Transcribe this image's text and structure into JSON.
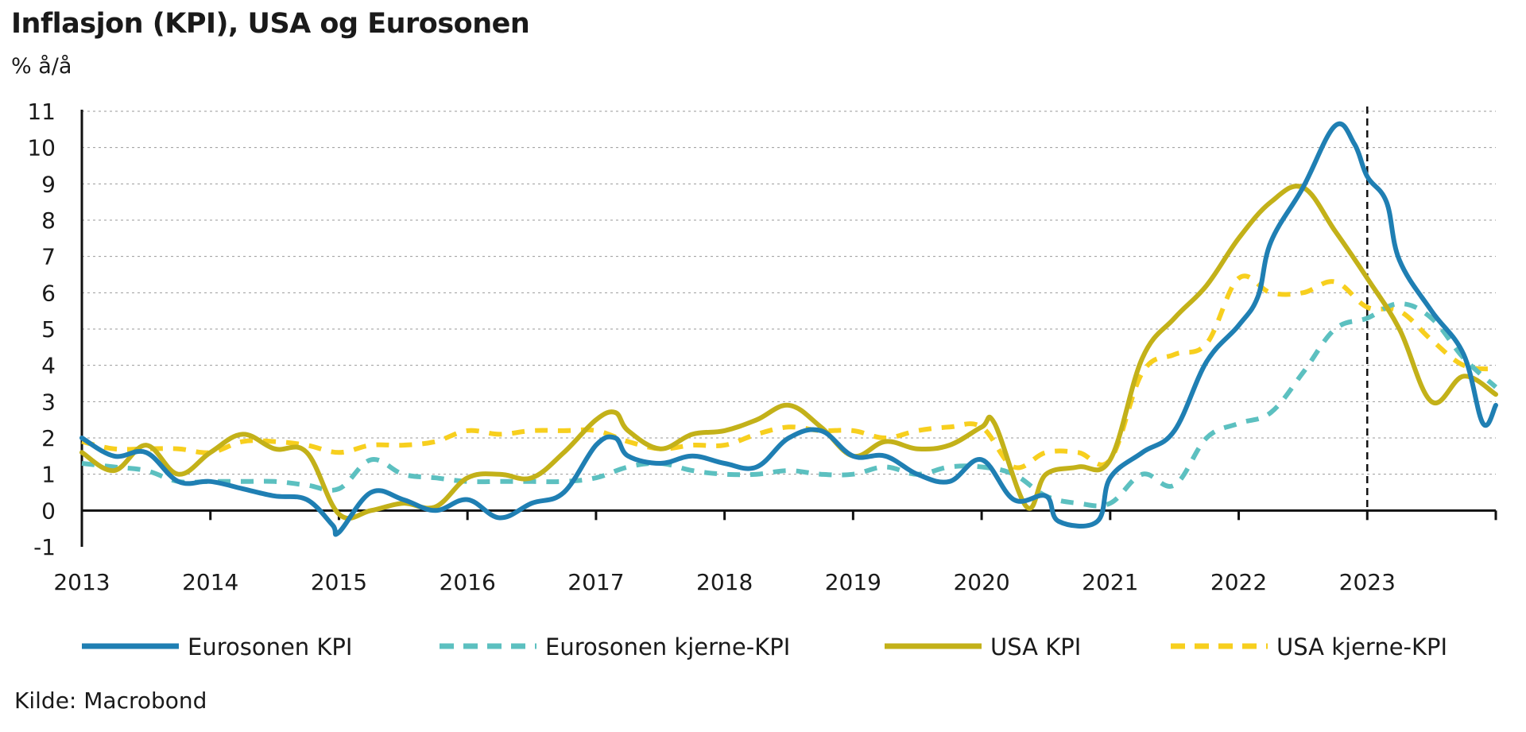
{
  "header": {
    "title": "Inflasjon (KPI), USA og Eurosonen",
    "unit": "% å/å"
  },
  "footer": {
    "source": "Kilde: Macrobond"
  },
  "chart_data": {
    "type": "line",
    "title": "Inflasjon (KPI), USA og Eurosonen",
    "ylabel": "% å/å",
    "xlabel": "",
    "ylim": [
      -1,
      11
    ],
    "yticks": [
      -1,
      0,
      1,
      2,
      3,
      4,
      5,
      6,
      7,
      8,
      9,
      10,
      11
    ],
    "xlim": [
      2013.0,
      2024.0
    ],
    "xticks": [
      "2013",
      "2014",
      "2015",
      "2016",
      "2017",
      "2018",
      "2019",
      "2020",
      "2021",
      "2022",
      "2023"
    ],
    "grid": "horizontal dashed",
    "legend_position": "bottom",
    "vertical_marker": {
      "x": 2023.0,
      "style": "dashed"
    },
    "series": [
      {
        "name": "Eurosonen KPI",
        "color": "#1f7fb3",
        "style": "solid",
        "x": [
          2013.0,
          2013.25,
          2013.5,
          2013.75,
          2014.0,
          2014.25,
          2014.5,
          2014.75,
          2014.95,
          2015.0,
          2015.25,
          2015.5,
          2015.75,
          2016.0,
          2016.25,
          2016.5,
          2016.75,
          2017.0,
          2017.15,
          2017.25,
          2017.5,
          2017.75,
          2018.0,
          2018.25,
          2018.5,
          2018.75,
          2019.0,
          2019.25,
          2019.5,
          2019.75,
          2020.0,
          2020.25,
          2020.5,
          2020.6,
          2020.9,
          2021.0,
          2021.25,
          2021.5,
          2021.75,
          2022.0,
          2022.15,
          2022.25,
          2022.5,
          2022.75,
          2022.9,
          2023.0,
          2023.15,
          2023.25,
          2023.5,
          2023.75,
          2023.9,
          2024.0
        ],
        "y": [
          2.0,
          1.5,
          1.6,
          0.8,
          0.8,
          0.6,
          0.4,
          0.3,
          -0.4,
          -0.6,
          0.5,
          0.3,
          0.0,
          0.3,
          -0.2,
          0.2,
          0.5,
          1.8,
          2.0,
          1.5,
          1.3,
          1.5,
          1.3,
          1.2,
          2.0,
          2.2,
          1.5,
          1.5,
          1.0,
          0.8,
          1.4,
          0.3,
          0.4,
          -0.3,
          -0.3,
          0.9,
          1.6,
          2.2,
          4.1,
          5.1,
          5.9,
          7.4,
          8.9,
          10.6,
          10.1,
          9.2,
          8.5,
          6.9,
          5.5,
          4.3,
          2.4,
          2.9
        ]
      },
      {
        "name": "Eurosonen kjerne-KPI",
        "color": "#5cc0c0",
        "style": "dashed",
        "x": [
          2013.0,
          2013.25,
          2013.5,
          2013.75,
          2014.0,
          2014.25,
          2014.5,
          2014.75,
          2015.0,
          2015.25,
          2015.5,
          2015.75,
          2016.0,
          2016.25,
          2016.5,
          2016.75,
          2017.0,
          2017.25,
          2017.5,
          2017.75,
          2018.0,
          2018.25,
          2018.5,
          2018.75,
          2019.0,
          2019.25,
          2019.5,
          2019.75,
          2020.0,
          2020.25,
          2020.5,
          2020.75,
          2021.0,
          2021.25,
          2021.5,
          2021.75,
          2022.0,
          2022.25,
          2022.5,
          2022.75,
          2023.0,
          2023.25,
          2023.5,
          2023.75,
          2024.0
        ],
        "y": [
          1.3,
          1.2,
          1.1,
          0.8,
          0.8,
          0.8,
          0.8,
          0.7,
          0.6,
          1.4,
          1.0,
          0.9,
          0.8,
          0.8,
          0.8,
          0.8,
          0.9,
          1.2,
          1.3,
          1.1,
          1.0,
          1.0,
          1.1,
          1.0,
          1.0,
          1.2,
          1.0,
          1.2,
          1.2,
          1.0,
          0.4,
          0.2,
          0.2,
          1.0,
          0.7,
          2.0,
          2.4,
          2.7,
          3.8,
          5.0,
          5.3,
          5.7,
          5.3,
          4.2,
          3.4
        ]
      },
      {
        "name": "USA KPI",
        "color": "#c3b119",
        "style": "solid",
        "x": [
          2013.0,
          2013.25,
          2013.5,
          2013.75,
          2014.0,
          2014.25,
          2014.5,
          2014.75,
          2015.0,
          2015.25,
          2015.5,
          2015.75,
          2016.0,
          2016.25,
          2016.5,
          2016.75,
          2017.0,
          2017.15,
          2017.25,
          2017.5,
          2017.75,
          2018.0,
          2018.25,
          2018.5,
          2018.75,
          2019.0,
          2019.25,
          2019.5,
          2019.75,
          2020.0,
          2020.1,
          2020.35,
          2020.5,
          2020.75,
          2021.0,
          2021.25,
          2021.5,
          2021.75,
          2022.0,
          2022.25,
          2022.5,
          2022.75,
          2023.0,
          2023.25,
          2023.5,
          2023.75,
          2024.0
        ],
        "y": [
          1.6,
          1.1,
          1.8,
          1.0,
          1.6,
          2.1,
          1.7,
          1.6,
          -0.1,
          0.0,
          0.2,
          0.1,
          0.9,
          1.0,
          0.9,
          1.6,
          2.5,
          2.7,
          2.2,
          1.7,
          2.1,
          2.2,
          2.5,
          2.9,
          2.3,
          1.5,
          1.9,
          1.7,
          1.8,
          2.3,
          2.4,
          0.1,
          1.0,
          1.2,
          1.4,
          4.2,
          5.3,
          6.2,
          7.5,
          8.5,
          8.9,
          7.7,
          6.4,
          5.0,
          3.0,
          3.7,
          3.2
        ]
      },
      {
        "name": "USA kjerne-KPI",
        "color": "#f7cf1e",
        "style": "dashed",
        "x": [
          2013.0,
          2013.25,
          2013.5,
          2013.75,
          2014.0,
          2014.25,
          2014.5,
          2014.75,
          2015.0,
          2015.25,
          2015.5,
          2015.75,
          2016.0,
          2016.25,
          2016.5,
          2016.75,
          2017.0,
          2017.25,
          2017.5,
          2017.75,
          2018.0,
          2018.25,
          2018.5,
          2018.75,
          2019.0,
          2019.25,
          2019.5,
          2019.75,
          2020.0,
          2020.25,
          2020.5,
          2020.75,
          2021.0,
          2021.25,
          2021.5,
          2021.75,
          2022.0,
          2022.25,
          2022.5,
          2022.75,
          2023.0,
          2023.25,
          2023.5,
          2023.75,
          2024.0
        ],
        "y": [
          1.9,
          1.7,
          1.7,
          1.7,
          1.6,
          1.9,
          1.9,
          1.8,
          1.6,
          1.8,
          1.8,
          1.9,
          2.2,
          2.1,
          2.2,
          2.2,
          2.2,
          1.9,
          1.7,
          1.8,
          1.8,
          2.1,
          2.3,
          2.2,
          2.2,
          2.0,
          2.2,
          2.3,
          2.3,
          1.2,
          1.6,
          1.6,
          1.4,
          3.8,
          4.3,
          4.6,
          6.4,
          6.0,
          6.0,
          6.3,
          5.6,
          5.5,
          4.7,
          4.0,
          3.9
        ]
      }
    ]
  }
}
